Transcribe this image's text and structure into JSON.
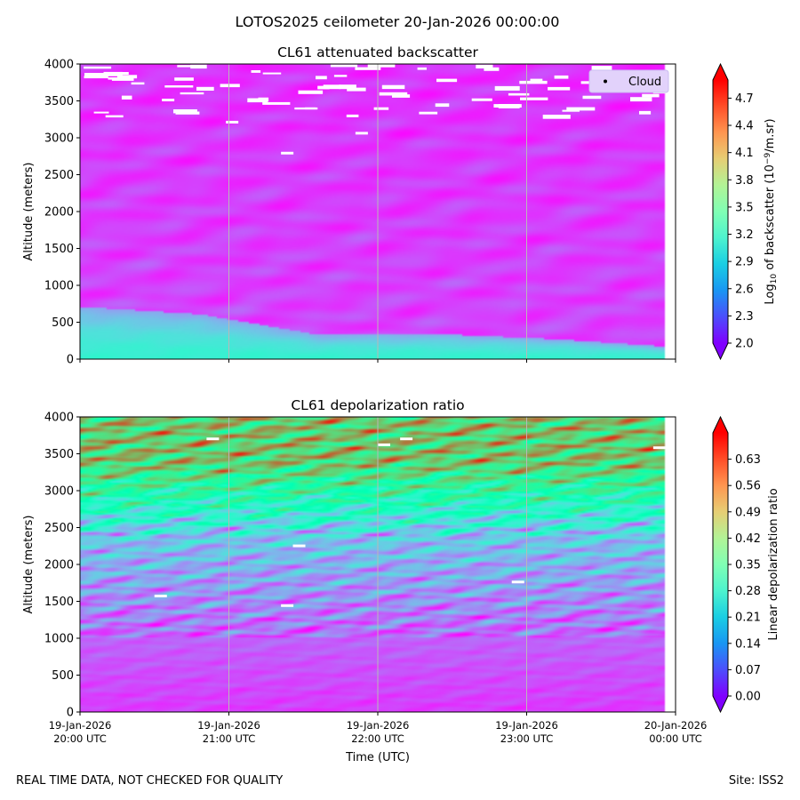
{
  "figure": {
    "suptitle": "LOTOS2025 ceilometer 20-Jan-2026 00:00:00",
    "footer_left": "REAL TIME DATA, NOT CHECKED FOR QUALITY",
    "footer_right": "Site: ISS2"
  },
  "chart_data": [
    {
      "type": "heatmap",
      "title": "CL61 attenuated backscatter",
      "xlabel": "",
      "ylabel": "Altitude (meters)",
      "ylim": [
        0,
        4000
      ],
      "yticks": [
        "0",
        "500",
        "1000",
        "1500",
        "2000",
        "2500",
        "3000",
        "3500",
        "4000"
      ],
      "xlim_hours": [
        20,
        24
      ],
      "grid": "vertical lines at each x tick",
      "colormap": "rainbow",
      "colorbar": {
        "label_prefix": "Log",
        "label_sub": "10",
        "label_mid": " of backscatter (10",
        "label_sup": "−9",
        "label_suffix": "/m.sr)",
        "range": [
          2.0,
          4.9
        ],
        "ticks": [
          "2.0",
          "2.3",
          "2.6",
          "2.9",
          "3.2",
          "3.5",
          "3.8",
          "4.1",
          "4.4",
          "4.7"
        ],
        "extend": "both"
      },
      "legend": {
        "entries": [
          "Cloud"
        ],
        "placement": "upper right"
      },
      "description_values": {
        "near_surface_value": 3.0,
        "boundary_layer_top_m": [
          700,
          600,
          320,
          330,
          260,
          150
        ],
        "background_value": 2.25,
        "cloud_gaps_above_m": 3300
      }
    },
    {
      "type": "heatmap",
      "title": "CL61 depolarization ratio",
      "xlabel": "Time (UTC)",
      "ylabel": "Altitude (meters)",
      "ylim": [
        0,
        4000
      ],
      "yticks": [
        "0",
        "500",
        "1000",
        "1500",
        "2000",
        "2500",
        "3000",
        "3500",
        "4000"
      ],
      "xlim_hours": [
        20,
        24
      ],
      "xticks": [
        {
          "line1": "19-Jan-2026",
          "line2": "20:00 UTC"
        },
        {
          "line1": "19-Jan-2026",
          "line2": "21:00 UTC"
        },
        {
          "line1": "19-Jan-2026",
          "line2": "22:00 UTC"
        },
        {
          "line1": "19-Jan-2026",
          "line2": "23:00 UTC"
        },
        {
          "line1": "20-Jan-2026",
          "line2": "00:00 UTC"
        }
      ],
      "grid": "vertical lines at each x tick",
      "colormap": "rainbow",
      "colorbar": {
        "label": "Linear depolarization ratio",
        "range": [
          0.0,
          0.7
        ],
        "ticks": [
          "0.00",
          "0.07",
          "0.14",
          "0.21",
          "0.28",
          "0.35",
          "0.42",
          "0.49",
          "0.56",
          "0.63"
        ],
        "extend": "both"
      },
      "description_values": {
        "low_level_value": 0.05,
        "mid_level_value": 0.2,
        "upper_level_value": 0.5
      }
    }
  ]
}
